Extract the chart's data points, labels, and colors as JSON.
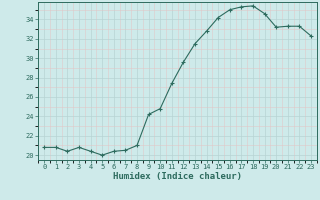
{
  "x": [
    0,
    1,
    2,
    3,
    4,
    5,
    6,
    7,
    8,
    9,
    10,
    11,
    12,
    13,
    14,
    15,
    16,
    17,
    18,
    19,
    20,
    21,
    22,
    23
  ],
  "y": [
    20.8,
    20.8,
    20.4,
    20.8,
    20.4,
    20.0,
    20.4,
    20.5,
    21.0,
    24.2,
    24.8,
    27.4,
    29.6,
    31.5,
    32.8,
    34.2,
    35.0,
    35.3,
    35.4,
    34.6,
    33.2,
    33.3,
    33.3,
    32.3
  ],
  "line_color": "#2d6b5e",
  "marker": "+",
  "marker_size": 3,
  "bg_color": "#ceeaea",
  "grid_major_color": "#b8d4d4",
  "grid_minor_color": "#e0c8c8",
  "xlabel": "Humidex (Indice chaleur)",
  "ylim": [
    19.5,
    35.8
  ],
  "xlim": [
    -0.5,
    23.5
  ],
  "yticks": [
    20,
    22,
    24,
    26,
    28,
    30,
    32,
    34
  ],
  "xticks": [
    0,
    1,
    2,
    3,
    4,
    5,
    6,
    7,
    8,
    9,
    10,
    11,
    12,
    13,
    14,
    15,
    16,
    17,
    18,
    19,
    20,
    21,
    22,
    23
  ],
  "tick_color": "#2d6b5e",
  "label_fontsize": 5.0,
  "xlabel_fontsize": 6.5
}
